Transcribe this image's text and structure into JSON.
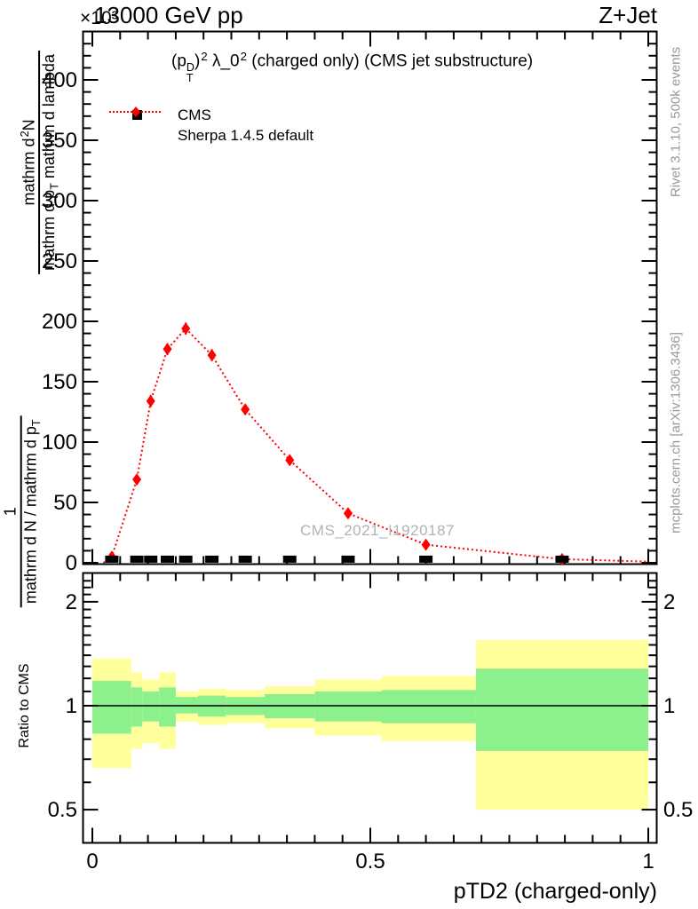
{
  "header": {
    "y_scale_label": "×10³",
    "energy": "13000 GeV pp",
    "process": "Z+Jet"
  },
  "main_panel": {
    "title_segments": [
      {
        "t": "(p"
      },
      {
        "s": "stack",
        "top": "D",
        "bottom": "T"
      },
      {
        "t": ")"
      },
      {
        "t": "2",
        "s": "sup"
      },
      {
        "t": " λ_0"
      },
      {
        "t": "2",
        "s": "sup"
      },
      {
        "t": " (charged only) (CMS jet substructure)"
      }
    ],
    "legend": {
      "items": [
        {
          "label": "CMS",
          "marker": "square",
          "color": "#000000"
        },
        {
          "label": "Sherpa 1.4.5 default",
          "marker": "diamond-line",
          "color": "#ff0000"
        }
      ]
    },
    "watermark": "CMS_2021_I1920187",
    "ylabel": {
      "frac2": {
        "num": [
          {
            "t": "mathrm d"
          },
          {
            "t": "2",
            "s": "sup"
          },
          {
            "t": "N"
          }
        ],
        "den": [
          {
            "t": "mathrm d p"
          },
          {
            "t": "T",
            "s": "sub"
          },
          {
            "t": " mathrm d lambda"
          }
        ]
      },
      "frac1": {
        "num": [
          {
            "t": "1"
          }
        ],
        "den": [
          {
            "t": "mathrm d N / mathrm d p"
          },
          {
            "t": "T",
            "s": "sub"
          }
        ]
      }
    },
    "yticks": [
      "0",
      "50",
      "100",
      "150",
      "200",
      "250",
      "300",
      "350",
      "400"
    ]
  },
  "ratio_panel": {
    "ylabel": "Ratio to CMS",
    "yticks": [
      "0.5",
      "1",
      "2"
    ]
  },
  "xaxis": {
    "title": "pTD2 (charged-only)",
    "tick_labels": [
      "0",
      "0.5",
      "1"
    ]
  },
  "side_notes": {
    "top": "Rivet 3.1.10,  500k events",
    "bottom": "mcplots.cern.ch [arXiv:1306.3436]"
  },
  "colors": {
    "sherpa": "#ff0000",
    "cms": "#000000",
    "band_yellow": "#ffff9c",
    "band_green": "#8cf08c",
    "side_text": "#999999",
    "watermark": "#b3b3b3",
    "frame": "#000000"
  },
  "chart_data": {
    "type": "line",
    "title": "(p_T^D)^2 λ_0^2 (charged only) (CMS jet substructure)",
    "xlabel": "pTD2 (charged-only)",
    "ylabel": "1/(dN/dp_T) d²N/(dp_T dλ)",
    "y_multiplier": "×10³",
    "xlim": [
      0,
      1
    ],
    "ylim": [
      0,
      440
    ],
    "ytick_step_major": 50,
    "ytick_step_minor": 10,
    "xtick_step_minor": 0.05,
    "x": [
      0.035,
      0.08,
      0.105,
      0.135,
      0.168,
      0.215,
      0.275,
      0.355,
      0.46,
      0.6,
      0.845
    ],
    "series": [
      {
        "name": "CMS",
        "type": "scatter",
        "marker": "square",
        "color": "#000000",
        "values": [
          3,
          3,
          3,
          3,
          3,
          3,
          3,
          3,
          3,
          3,
          3
        ]
      },
      {
        "name": "Sherpa 1.4.5 default",
        "type": "line-dotted",
        "marker": "diamond",
        "color": "#ff0000",
        "values": [
          5,
          69,
          134,
          177,
          194,
          172,
          127,
          85,
          41,
          15,
          3
        ],
        "yerr": [
          2,
          4,
          5,
          5,
          5,
          5,
          4,
          4,
          3,
          2,
          1
        ]
      }
    ],
    "line_start": {
      "x": 0.02,
      "y": 0
    },
    "line_end": {
      "x": 1.0,
      "y": 1
    },
    "ratio": {
      "ylabel": "Ratio to CMS",
      "yscale": "log",
      "ylim": [
        0.4,
        2.4
      ],
      "reference_line": 1,
      "bin_edges": [
        0,
        0.07,
        0.09,
        0.12,
        0.15,
        0.19,
        0.24,
        0.31,
        0.4,
        0.52,
        0.69,
        1.0
      ],
      "yellow_band": [
        [
          0.66,
          1.37
        ],
        [
          0.75,
          1.25
        ],
        [
          0.78,
          1.19
        ],
        [
          0.75,
          1.25
        ],
        [
          0.9,
          1.1
        ],
        [
          0.88,
          1.12
        ],
        [
          0.89,
          1.11
        ],
        [
          0.86,
          1.14
        ],
        [
          0.82,
          1.19
        ],
        [
          0.79,
          1.22
        ],
        [
          0.5,
          1.55
        ]
      ],
      "green_band": [
        [
          0.83,
          1.18
        ],
        [
          0.87,
          1.13
        ],
        [
          0.9,
          1.1
        ],
        [
          0.87,
          1.13
        ],
        [
          0.95,
          1.06
        ],
        [
          0.93,
          1.07
        ],
        [
          0.94,
          1.06
        ],
        [
          0.92,
          1.08
        ],
        [
          0.9,
          1.1
        ],
        [
          0.89,
          1.11
        ],
        [
          0.74,
          1.28
        ]
      ]
    }
  }
}
